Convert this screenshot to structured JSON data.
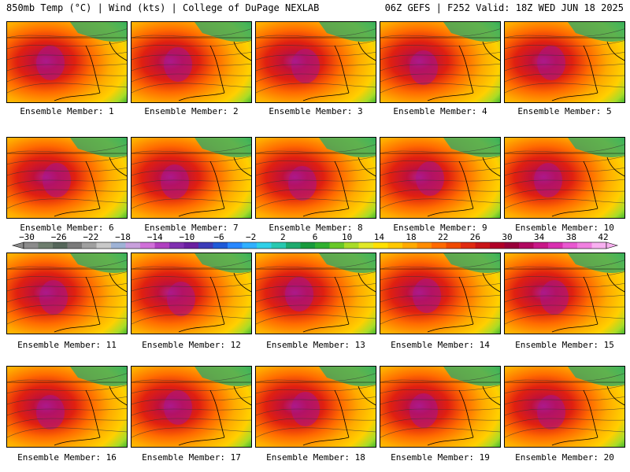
{
  "header": {
    "left": "850mb Temp (°C) | Wind (kts) | College of DuPage NEXLAB",
    "right": "06Z GEFS | F252 Valid: 18Z WED JUN 18 2025"
  },
  "members": [
    "Ensemble Member: 1",
    "Ensemble Member: 2",
    "Ensemble Member: 3",
    "Ensemble Member: 4",
    "Ensemble Member: 5",
    "Ensemble Member: 6",
    "Ensemble Member: 7",
    "Ensemble Member: 8",
    "Ensemble Member: 9",
    "Ensemble Member: 10",
    "Ensemble Member: 11",
    "Ensemble Member: 12",
    "Ensemble Member: 13",
    "Ensemble Member: 14",
    "Ensemble Member: 15",
    "Ensemble Member: 16",
    "Ensemble Member: 17",
    "Ensemble Member: 18",
    "Ensemble Member: 19",
    "Ensemble Member: 20"
  ],
  "colorbar": {
    "labels": [
      "-30",
      "-26",
      "-22",
      "-18",
      "-14",
      "-10",
      "-6",
      "-2",
      "2",
      "6",
      "10",
      "14",
      "18",
      "22",
      "26",
      "30",
      "34",
      "38",
      "42"
    ],
    "colors": [
      "#8c8c8c",
      "#6e7e6e",
      "#55665a",
      "#7a7a7a",
      "#a0a0a0",
      "#c8c8c8",
      "#9fb3d6",
      "#c8a0dc",
      "#d070d8",
      "#b040c0",
      "#8030b0",
      "#6a1fa0",
      "#3c3cb8",
      "#1e5ad8",
      "#2888ff",
      "#30b0ff",
      "#30d0e8",
      "#28c8b0",
      "#1eaa6e",
      "#189a3c",
      "#30b030",
      "#68c828",
      "#a8dc28",
      "#e0e828",
      "#ffe000",
      "#ffc800",
      "#ffaa00",
      "#ff8c00",
      "#ff6a00",
      "#f04a00",
      "#e02a10",
      "#c81418",
      "#b00028",
      "#98003a",
      "#b00860",
      "#c81888",
      "#d830b0",
      "#e858d0",
      "#f080e0",
      "#f8b0f0"
    ]
  }
}
